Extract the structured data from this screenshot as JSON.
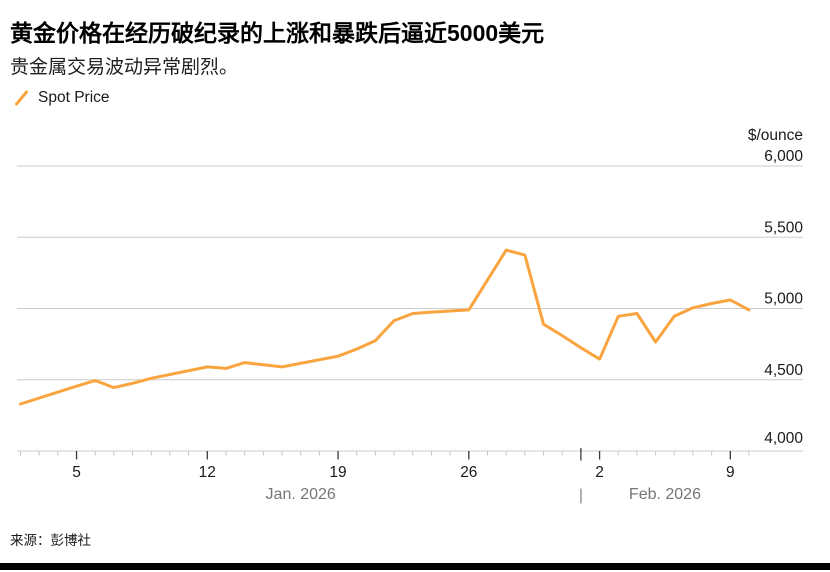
{
  "header": {
    "title": "黄金价格在经历破纪录的上涨和暴跌后逼近5000美元",
    "subtitle": "贵金属交易波动异常剧烈。"
  },
  "legend": {
    "items": [
      {
        "label": "Spot Price",
        "marker": "diagonal-line-icon",
        "color": "#F9A43E"
      }
    ]
  },
  "source": {
    "text": "来源：彭博社"
  },
  "colors": {
    "line": "#F9A43E",
    "gridline": "#cccccc",
    "minor_tick": "#c6c6c6",
    "major_tick": "#3a3a3a",
    "tick_label": "#1a1a1a",
    "month_label": "#767676",
    "bottom_bar": "#000000",
    "background": "#ffffff"
  },
  "chart_data": {
    "type": "line",
    "title": "黄金价格在经历破纪录的上涨和暴跌后逼近5000美元",
    "subtitle": "贵金属交易波动异常剧烈。",
    "unit_label": "$/ounce",
    "legend": [
      "Spot Price"
    ],
    "legend_position": "top-left",
    "grid": true,
    "y_axis": {
      "range": [
        4000,
        6000
      ],
      "ticks": [
        {
          "value": 6000,
          "label": "6,000"
        },
        {
          "value": 5500,
          "label": "5,500"
        },
        {
          "value": 5000,
          "label": "5,000"
        },
        {
          "value": 4500,
          "label": "4,500"
        },
        {
          "value": 4000,
          "label": "4,000"
        }
      ]
    },
    "x_axis": {
      "start_date": "2026-01-02",
      "end_date": "2026-02-10",
      "minor_ticks_daily": true,
      "first_day": 0,
      "last_day": 39,
      "major_ticks": [
        {
          "day": 3,
          "label": "5"
        },
        {
          "day": 10,
          "label": "12"
        },
        {
          "day": 17,
          "label": "19"
        },
        {
          "day": 24,
          "label": "26"
        },
        {
          "day": 31,
          "label": "2"
        },
        {
          "day": 38,
          "label": "9"
        }
      ],
      "month_divider_day": 30,
      "month_divider_glyph": "|",
      "month_labels": [
        {
          "label": "Jan. 2026",
          "center_day": 15
        },
        {
          "label": "Feb. 2026",
          "center_day": 34.5
        }
      ]
    },
    "series": [
      {
        "name": "Spot Price",
        "color": "#F9A43E",
        "points": [
          {
            "date": "Jan 2",
            "day": 0,
            "value": 4330
          },
          {
            "date": "Jan 5",
            "day": 3,
            "value": 4455
          },
          {
            "date": "Jan 6",
            "day": 4,
            "value": 4495
          },
          {
            "date": "Jan 7",
            "day": 5,
            "value": 4445
          },
          {
            "date": "Jan 8",
            "day": 6,
            "value": 4475
          },
          {
            "date": "Jan 9",
            "day": 7,
            "value": 4510
          },
          {
            "date": "Jan 12",
            "day": 10,
            "value": 4590
          },
          {
            "date": "Jan 13",
            "day": 11,
            "value": 4580
          },
          {
            "date": "Jan 14",
            "day": 12,
            "value": 4620
          },
          {
            "date": "Jan 15",
            "day": 13,
            "value": 4605
          },
          {
            "date": "Jan 16",
            "day": 14,
            "value": 4590
          },
          {
            "date": "Jan 19",
            "day": 17,
            "value": 4665
          },
          {
            "date": "Jan 20",
            "day": 18,
            "value": 4715
          },
          {
            "date": "Jan 21",
            "day": 19,
            "value": 4775
          },
          {
            "date": "Jan 22",
            "day": 20,
            "value": 4915
          },
          {
            "date": "Jan 23",
            "day": 21,
            "value": 4965
          },
          {
            "date": "Jan 24",
            "day": 22,
            "value": 4975
          },
          {
            "date": "Jan 26",
            "day": 24,
            "value": 4990
          },
          {
            "date": "Jan 27",
            "day": 25,
            "value": 5200
          },
          {
            "date": "Jan 28",
            "day": 26,
            "value": 5410
          },
          {
            "date": "Jan 29",
            "day": 27,
            "value": 5375
          },
          {
            "date": "Jan 30",
            "day": 28,
            "value": 4890
          },
          {
            "date": "Jan 31",
            "day": 29,
            "value": 4810
          },
          {
            "date": "Feb 1",
            "day": 30,
            "value": 4725
          },
          {
            "date": "Feb 2",
            "day": 31,
            "value": 4645
          },
          {
            "date": "Feb 3",
            "day": 32,
            "value": 4945
          },
          {
            "date": "Feb 4",
            "day": 33,
            "value": 4965
          },
          {
            "date": "Feb 5",
            "day": 34,
            "value": 4765
          },
          {
            "date": "Feb 6",
            "day": 35,
            "value": 4945
          },
          {
            "date": "Feb 7",
            "day": 36,
            "value": 5005
          },
          {
            "date": "Feb 8",
            "day": 37,
            "value": 5035
          },
          {
            "date": "Feb 9",
            "day": 38,
            "value": 5060
          },
          {
            "date": "Feb 10",
            "day": 39,
            "value": 4990
          }
        ]
      }
    ]
  }
}
